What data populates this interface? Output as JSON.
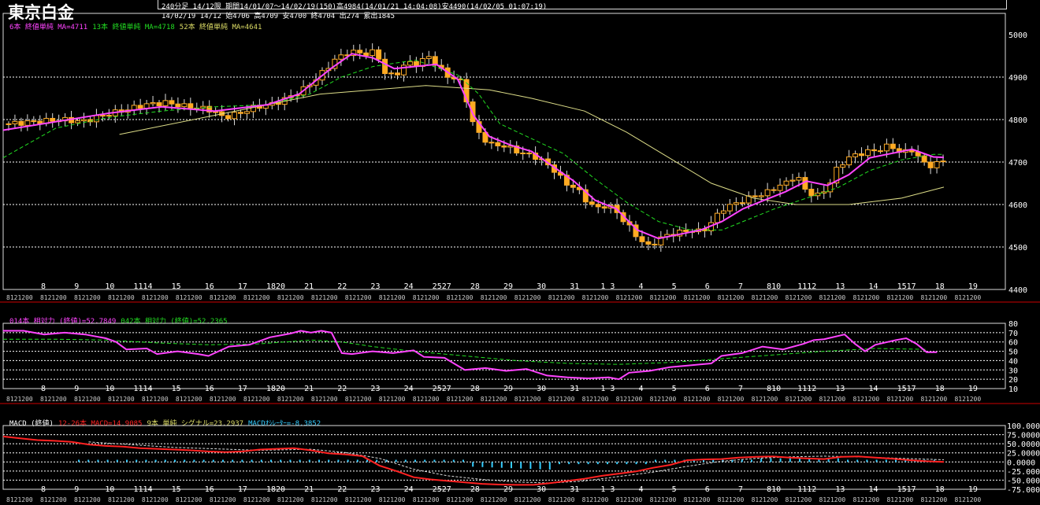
{
  "header": {
    "title": "東京白金",
    "line1": "240分足 14/12限  期間14/01/07～14/02/19(150)高4984(14/01/21 14:04:08)安4490(14/02/05 01:07:19)",
    "line2": "14/02/19 14/12 始4706 高4709 安4700 終4704 出274 累出1845"
  },
  "colors": {
    "background": "#000000",
    "candle": "#ffaa22",
    "ma6": "#ff44ff",
    "ma13": "#22dd22",
    "ma52": "#dddd88",
    "rsi14": "#ff44ff",
    "rsi42": "#22dd22",
    "macd": "#ff2222",
    "signal": "#dddddd",
    "osc": "#33ccff",
    "grid": "#ffffff",
    "separator": "#cc0000"
  },
  "legends": {
    "price": [
      {
        "text": "6本 終値単純 MA=4711",
        "color": "#ff44ff"
      },
      {
        "text": "13本 終値単純 MA=4718",
        "color": "#22dd22"
      },
      {
        "text": "52本 終値単純 MA=4641",
        "color": "#dddd66"
      }
    ],
    "rsi": [
      {
        "text": "014本 相対力 (終値)=52.7849",
        "color": "#ff44ff"
      },
      {
        "text": "042本 相対力 (終値)=52.2365",
        "color": "#22dd22"
      }
    ],
    "macd": [
      {
        "text": "MACD (終値)",
        "color": "#ffffff"
      },
      {
        "text": "12-26本 MACD=14.9085",
        "color": "#ff2222"
      },
      {
        "text": "9本 単純 シグナル=23.2937",
        "color": "#dddd66"
      },
      {
        "text": "MACDｵｼﾚｰﾀｰ=-8.3852",
        "color": "#33ccff"
      }
    ]
  },
  "chart_data": [
    {
      "type": "candlestick",
      "title": "",
      "ylim": [
        4400,
        5050
      ],
      "yticks": [
        "5000",
        "4900",
        "4800",
        "4700",
        "4600",
        "4500",
        "4400"
      ],
      "date_labels": [
        "8",
        "9",
        "10",
        "1114",
        "15",
        "16",
        "17",
        "1820",
        "21",
        "22",
        "23",
        "24",
        "2527",
        "28",
        "29",
        "30",
        "31",
        "1 3",
        "4",
        "5",
        "6",
        "7",
        "810",
        "1112",
        "13",
        "14",
        "1517",
        "18",
        "19"
      ],
      "session_label_pattern": "8121200",
      "close_path": [
        [
          0,
          4790
        ],
        [
          5,
          4795
        ],
        [
          10,
          4800
        ],
        [
          14,
          4795
        ],
        [
          18,
          4810
        ],
        [
          22,
          4822
        ],
        [
          26,
          4835
        ],
        [
          30,
          4840
        ],
        [
          34,
          4830
        ],
        [
          38,
          4825
        ],
        [
          41,
          4805
        ],
        [
          44,
          4815
        ],
        [
          47,
          4830
        ],
        [
          50,
          4835
        ],
        [
          53,
          4850
        ],
        [
          56,
          4870
        ],
        [
          59,
          4900
        ],
        [
          62,
          4940
        ],
        [
          65,
          4960
        ],
        [
          68,
          4955
        ],
        [
          70,
          4960
        ],
        [
          72,
          4900
        ],
        [
          74,
          4910
        ],
        [
          76,
          4935
        ],
        [
          78,
          4930
        ],
        [
          80,
          4950
        ],
        [
          82,
          4920
        ],
        [
          84,
          4900
        ],
        [
          86,
          4890
        ],
        [
          87,
          4860
        ],
        [
          88,
          4800
        ],
        [
          90,
          4760
        ],
        [
          92,
          4740
        ],
        [
          94,
          4740
        ],
        [
          96,
          4730
        ],
        [
          98,
          4720
        ],
        [
          100,
          4715
        ],
        [
          102,
          4700
        ],
        [
          104,
          4680
        ],
        [
          106,
          4650
        ],
        [
          108,
          4640
        ],
        [
          110,
          4610
        ],
        [
          112,
          4590
        ],
        [
          114,
          4600
        ],
        [
          116,
          4580
        ],
        [
          118,
          4550
        ],
        [
          120,
          4520
        ],
        [
          122,
          4500
        ],
        [
          124,
          4520
        ],
        [
          126,
          4530
        ],
        [
          128,
          4535
        ],
        [
          130,
          4540
        ],
        [
          132,
          4535
        ],
        [
          134,
          4560
        ],
        [
          136,
          4590
        ],
        [
          138,
          4600
        ],
        [
          140,
          4610
        ],
        [
          142,
          4620
        ],
        [
          144,
          4625
        ],
        [
          146,
          4640
        ],
        [
          148,
          4650
        ],
        [
          150,
          4670
        ],
        [
          152,
          4630
        ],
        [
          154,
          4620
        ],
        [
          156,
          4640
        ],
        [
          158,
          4690
        ],
        [
          160,
          4710
        ],
        [
          162,
          4720
        ],
        [
          164,
          4725
        ],
        [
          166,
          4730
        ],
        [
          168,
          4740
        ],
        [
          170,
          4720
        ],
        [
          172,
          4730
        ],
        [
          174,
          4700
        ],
        [
          176,
          4690
        ],
        [
          178,
          4704
        ]
      ],
      "ma6_path": [
        [
          0,
          4775
        ],
        [
          10,
          4795
        ],
        [
          20,
          4815
        ],
        [
          30,
          4830
        ],
        [
          40,
          4820
        ],
        [
          50,
          4835
        ],
        [
          56,
          4860
        ],
        [
          62,
          4920
        ],
        [
          66,
          4955
        ],
        [
          70,
          4945
        ],
        [
          74,
          4920
        ],
        [
          78,
          4925
        ],
        [
          82,
          4930
        ],
        [
          86,
          4895
        ],
        [
          89,
          4810
        ],
        [
          92,
          4760
        ],
        [
          96,
          4740
        ],
        [
          100,
          4725
        ],
        [
          104,
          4690
        ],
        [
          108,
          4655
        ],
        [
          112,
          4610
        ],
        [
          116,
          4590
        ],
        [
          120,
          4540
        ],
        [
          124,
          4520
        ],
        [
          128,
          4530
        ],
        [
          132,
          4540
        ],
        [
          136,
          4560
        ],
        [
          140,
          4590
        ],
        [
          144,
          4610
        ],
        [
          148,
          4630
        ],
        [
          152,
          4655
        ],
        [
          156,
          4645
        ],
        [
          160,
          4670
        ],
        [
          164,
          4710
        ],
        [
          168,
          4720
        ],
        [
          172,
          4730
        ],
        [
          176,
          4712
        ],
        [
          178,
          4711
        ]
      ],
      "ma13_path": [
        [
          0,
          4710
        ],
        [
          10,
          4780
        ],
        [
          20,
          4805
        ],
        [
          30,
          4820
        ],
        [
          40,
          4830
        ],
        [
          50,
          4835
        ],
        [
          58,
          4860
        ],
        [
          64,
          4900
        ],
        [
          70,
          4925
        ],
        [
          78,
          4940
        ],
        [
          86,
          4905
        ],
        [
          90,
          4860
        ],
        [
          94,
          4790
        ],
        [
          100,
          4755
        ],
        [
          106,
          4720
        ],
        [
          112,
          4660
        ],
        [
          118,
          4605
        ],
        [
          124,
          4560
        ],
        [
          130,
          4540
        ],
        [
          136,
          4540
        ],
        [
          140,
          4560
        ],
        [
          146,
          4590
        ],
        [
          152,
          4615
        ],
        [
          158,
          4640
        ],
        [
          164,
          4680
        ],
        [
          170,
          4705
        ],
        [
          176,
          4718
        ],
        [
          178,
          4718
        ]
      ],
      "ma52_path": [
        [
          22,
          4765
        ],
        [
          40,
          4810
        ],
        [
          60,
          4860
        ],
        [
          80,
          4880
        ],
        [
          92,
          4870
        ],
        [
          100,
          4850
        ],
        [
          110,
          4820
        ],
        [
          118,
          4770
        ],
        [
          126,
          4710
        ],
        [
          134,
          4650
        ],
        [
          142,
          4615
        ],
        [
          150,
          4600
        ],
        [
          160,
          4600
        ],
        [
          170,
          4615
        ],
        [
          178,
          4641
        ]
      ]
    },
    {
      "type": "line",
      "title": "",
      "ylim": [
        10,
        80
      ],
      "yticks": [
        "80",
        "70",
        "60",
        "50",
        "40",
        "30",
        "20",
        "10"
      ],
      "rsi14_path": [
        [
          0,
          72
        ],
        [
          4,
          72
        ],
        [
          8,
          68
        ],
        [
          12,
          70
        ],
        [
          16,
          68
        ],
        [
          20,
          64
        ],
        [
          22,
          60
        ],
        [
          24,
          52
        ],
        [
          28,
          53
        ],
        [
          30,
          47
        ],
        [
          34,
          50
        ],
        [
          38,
          47
        ],
        [
          40,
          45
        ],
        [
          44,
          55
        ],
        [
          48,
          57
        ],
        [
          52,
          65
        ],
        [
          56,
          69
        ],
        [
          58,
          72
        ],
        [
          60,
          70
        ],
        [
          62,
          72
        ],
        [
          64,
          70
        ],
        [
          66,
          48
        ],
        [
          68,
          47
        ],
        [
          72,
          50
        ],
        [
          76,
          48
        ],
        [
          80,
          51
        ],
        [
          82,
          44
        ],
        [
          86,
          43
        ],
        [
          90,
          30
        ],
        [
          94,
          32
        ],
        [
          98,
          29
        ],
        [
          102,
          31
        ],
        [
          106,
          24
        ],
        [
          110,
          22
        ],
        [
          114,
          21
        ],
        [
          118,
          22
        ],
        [
          120,
          20
        ],
        [
          122,
          27
        ],
        [
          126,
          29
        ],
        [
          130,
          33
        ],
        [
          134,
          35
        ],
        [
          138,
          37
        ],
        [
          140,
          45
        ],
        [
          144,
          48
        ],
        [
          148,
          55
        ],
        [
          152,
          52
        ],
        [
          156,
          58
        ],
        [
          158,
          62
        ],
        [
          160,
          63
        ],
        [
          164,
          68
        ],
        [
          166,
          58
        ],
        [
          168,
          50
        ],
        [
          170,
          57
        ],
        [
          174,
          62
        ],
        [
          176,
          64
        ],
        [
          178,
          58
        ],
        [
          180,
          49
        ],
        [
          182,
          49
        ]
      ],
      "rsi42_path": [
        [
          0,
          63
        ],
        [
          10,
          63
        ],
        [
          20,
          62
        ],
        [
          30,
          59
        ],
        [
          40,
          57
        ],
        [
          50,
          58
        ],
        [
          60,
          62
        ],
        [
          66,
          60
        ],
        [
          72,
          55
        ],
        [
          80,
          50
        ],
        [
          90,
          45
        ],
        [
          100,
          40
        ],
        [
          110,
          37
        ],
        [
          120,
          36
        ],
        [
          130,
          38
        ],
        [
          140,
          42
        ],
        [
          150,
          46
        ],
        [
          160,
          50
        ],
        [
          170,
          53
        ],
        [
          180,
          52
        ]
      ]
    },
    {
      "type": "line",
      "title": "",
      "ylim": [
        -75,
        100
      ],
      "yticks": [
        "100.0000",
        "75.0000",
        "50.0000",
        "25.0000",
        "0.0000",
        "-25.0000",
        "-50.0000",
        "-75.0000"
      ],
      "macd_path": [
        [
          0,
          70
        ],
        [
          4,
          65
        ],
        [
          8,
          60
        ],
        [
          12,
          58
        ],
        [
          16,
          55
        ],
        [
          20,
          48
        ],
        [
          24,
          44
        ],
        [
          28,
          42
        ],
        [
          32,
          38
        ],
        [
          36,
          36
        ],
        [
          40,
          34
        ],
        [
          44,
          32
        ],
        [
          48,
          29
        ],
        [
          52,
          27
        ],
        [
          56,
          29
        ],
        [
          60,
          34
        ],
        [
          64,
          36
        ],
        [
          68,
          38
        ],
        [
          72,
          32
        ],
        [
          76,
          24
        ],
        [
          80,
          21
        ],
        [
          84,
          16
        ],
        [
          88,
          -10
        ],
        [
          92,
          -25
        ],
        [
          96,
          -42
        ],
        [
          100,
          -48
        ],
        [
          104,
          -52
        ],
        [
          108,
          -56
        ],
        [
          112,
          -60
        ],
        [
          116,
          -62
        ],
        [
          120,
          -63
        ],
        [
          124,
          -63
        ],
        [
          128,
          -58
        ],
        [
          132,
          -52
        ],
        [
          136,
          -46
        ],
        [
          140,
          -38
        ],
        [
          144,
          -32
        ],
        [
          148,
          -26
        ],
        [
          152,
          -16
        ],
        [
          156,
          -8
        ],
        [
          160,
          5
        ],
        [
          164,
          7
        ],
        [
          168,
          8
        ],
        [
          172,
          12
        ],
        [
          176,
          14
        ],
        [
          180,
          15
        ],
        [
          184,
          12
        ],
        [
          188,
          10
        ],
        [
          192,
          8
        ],
        [
          196,
          14
        ],
        [
          200,
          15
        ],
        [
          204,
          12
        ],
        [
          208,
          9
        ],
        [
          212,
          5
        ],
        [
          216,
          2
        ],
        [
          220,
          0
        ]
      ],
      "signal_path": [
        [
          20,
          55
        ],
        [
          40,
          40
        ],
        [
          60,
          32
        ],
        [
          72,
          35
        ],
        [
          80,
          26
        ],
        [
          88,
          10
        ],
        [
          96,
          -20
        ],
        [
          104,
          -38
        ],
        [
          112,
          -48
        ],
        [
          120,
          -55
        ],
        [
          128,
          -58
        ],
        [
          136,
          -52
        ],
        [
          144,
          -40
        ],
        [
          152,
          -28
        ],
        [
          160,
          -12
        ],
        [
          168,
          2
        ],
        [
          176,
          10
        ],
        [
          184,
          14
        ],
        [
          192,
          16
        ],
        [
          200,
          14
        ],
        [
          210,
          10
        ],
        [
          220,
          6
        ]
      ],
      "osc_count": 90
    }
  ]
}
